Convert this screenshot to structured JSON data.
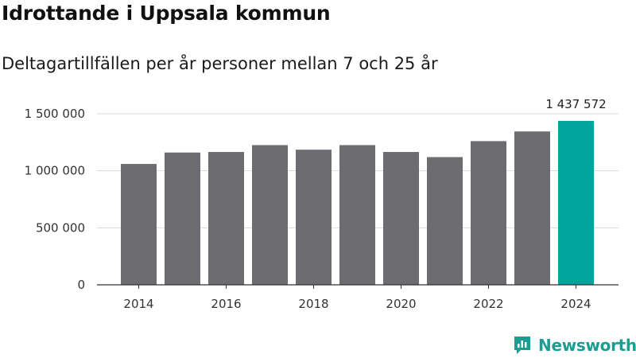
{
  "title": "Idrottande i Uppsala kommun",
  "subtitle": "Deltagartillfällen per år personer mellan 7 och 25 år",
  "brand": {
    "name": "Newsworthy",
    "icon": "newsworthy-logo-icon"
  },
  "colors": {
    "bar": "#6d6c70",
    "highlight": "#00a49c",
    "grid": "#d9d9d9",
    "axis": "#333333"
  },
  "chart_data": {
    "type": "bar",
    "title": "Idrottande i Uppsala kommun",
    "subtitle": "Deltagartillfällen per år personer mellan 7 och 25 år",
    "xlabel": "",
    "ylabel": "",
    "categories": [
      "2014",
      "2015",
      "2016",
      "2017",
      "2018",
      "2019",
      "2020",
      "2021",
      "2022",
      "2023",
      "2024"
    ],
    "values": [
      1060000,
      1160000,
      1165000,
      1225000,
      1185000,
      1225000,
      1165000,
      1120000,
      1260000,
      1345000,
      1437572
    ],
    "highlight_index": 10,
    "highlight_label": "1 437 572",
    "ylim": [
      0,
      1500000
    ],
    "yticks": [
      0,
      500000,
      1000000,
      1500000
    ],
    "ytick_labels": [
      "0",
      "500 000",
      "1 000 000",
      "1 500 000"
    ],
    "xtick_labels": [
      "2014",
      "2016",
      "2018",
      "2020",
      "2022",
      "2024"
    ],
    "grid": true,
    "legend": "none"
  }
}
